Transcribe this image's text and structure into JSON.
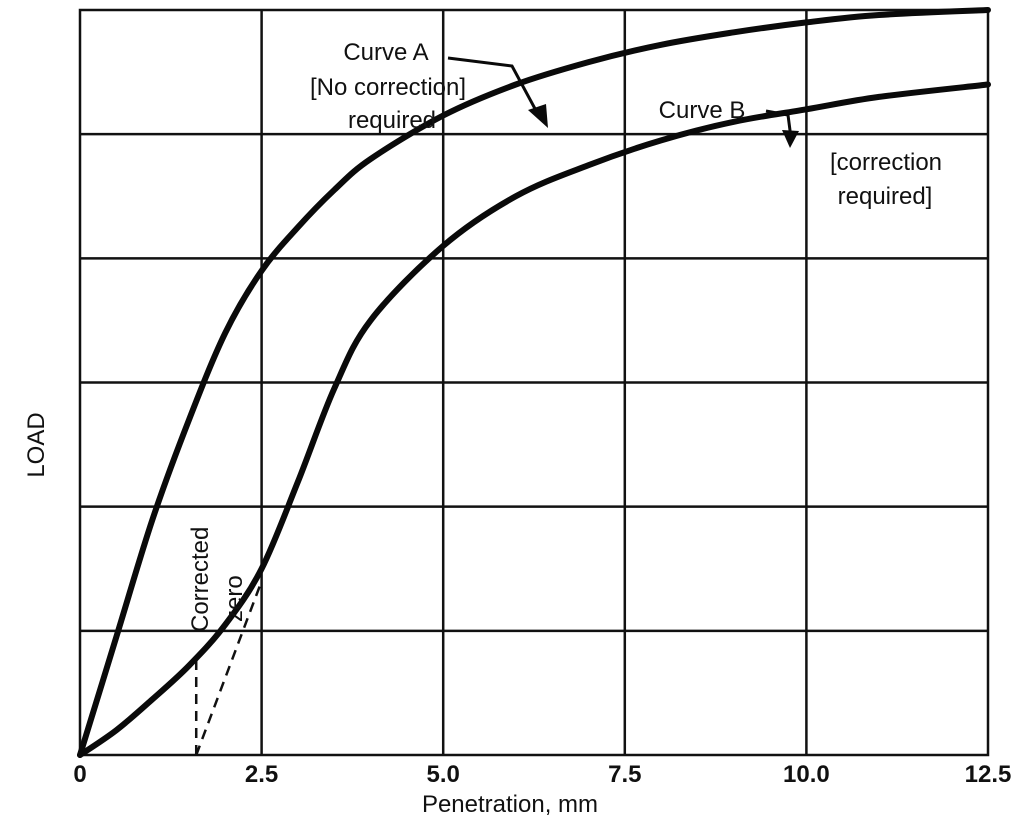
{
  "chart_data": {
    "type": "line",
    "title": "",
    "xlabel": "Penetration, mm",
    "ylabel": "LOAD",
    "xlim": [
      0,
      12.5
    ],
    "ylim": [
      0,
      6
    ],
    "x_ticks": [
      "0",
      "2.5",
      "5.0",
      "7.5",
      "10.0",
      "12.5"
    ],
    "grid": true,
    "series": [
      {
        "name": "Curve A",
        "x": [
          0,
          0.5,
          1.0,
          1.5,
          2.0,
          2.5,
          3.0,
          3.5,
          4.0,
          5.0,
          6.0,
          7.0,
          8.0,
          9.0,
          10.0,
          11.0,
          12.5
        ],
        "y": [
          0,
          0.95,
          1.9,
          2.7,
          3.4,
          3.9,
          4.25,
          4.55,
          4.8,
          5.15,
          5.4,
          5.58,
          5.72,
          5.82,
          5.9,
          5.96,
          6.0
        ]
      },
      {
        "name": "Curve B",
        "x": [
          0,
          0.5,
          1.0,
          1.5,
          2.0,
          2.5,
          3.0,
          3.5,
          4.0,
          5.0,
          6.0,
          7.0,
          8.0,
          9.0,
          10.0,
          11.0,
          12.5
        ],
        "y": [
          0,
          0.2,
          0.45,
          0.72,
          1.05,
          1.5,
          2.2,
          2.95,
          3.5,
          4.1,
          4.5,
          4.75,
          4.95,
          5.1,
          5.2,
          5.3,
          5.4
        ]
      }
    ],
    "corrected_zero": {
      "x": 1.6,
      "tangent": [
        [
          1.6,
          0
        ],
        [
          2.5,
          1.4
        ]
      ]
    },
    "annotations": {
      "curve_a": [
        "Curve A",
        "[No correction]",
        "required"
      ],
      "curve_b": [
        "Curve B"
      ],
      "curve_b_note": [
        "[correction",
        "required]"
      ],
      "corrected_zero": [
        "Corrected",
        "zero"
      ]
    }
  }
}
